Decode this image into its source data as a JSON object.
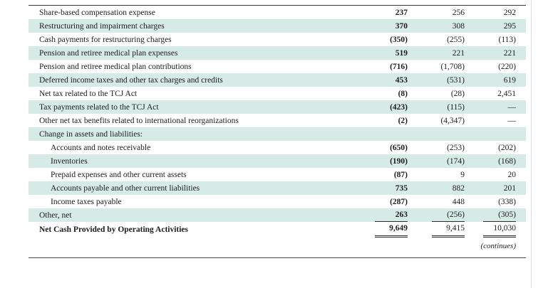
{
  "page": {
    "continues_note": "(continues)"
  },
  "colors": {
    "row_highlight": "#d7ebe6",
    "rule": "#3a3a3a"
  },
  "table": {
    "rows": [
      {
        "label": "Share-based compensation expense",
        "v1": "237",
        "v2": "256",
        "v3": "292"
      },
      {
        "label": "Restructuring and impairment charges",
        "v1": "370",
        "v2": "308",
        "v3": "295"
      },
      {
        "label": "Cash payments for restructuring charges",
        "v1": "(350)",
        "v2": "(255)",
        "v3": "(113)"
      },
      {
        "label": "Pension and retiree medical plan expenses",
        "v1": "519",
        "v2": "221",
        "v3": "221"
      },
      {
        "label": "Pension and retiree medical plan contributions",
        "v1": "(716)",
        "v2": "(1,708)",
        "v3": "(220)"
      },
      {
        "label": "Deferred income taxes and other tax charges and credits",
        "v1": "453",
        "v2": "(531)",
        "v3": "619"
      },
      {
        "label": "Net tax related to the TCJ Act",
        "v1": "(8)",
        "v2": "(28)",
        "v3": "2,451"
      },
      {
        "label": "Tax payments related to the TCJ Act",
        "v1": "(423)",
        "v2": "(115)",
        "v3": "—"
      },
      {
        "label": "Other net tax benefits related to international reorganizations",
        "v1": "(2)",
        "v2": "(4,347)",
        "v3": "—"
      },
      {
        "label": "Change in assets and liabilities:",
        "v1": "",
        "v2": "",
        "v3": ""
      },
      {
        "label": "Accounts and notes receivable",
        "v1": "(650)",
        "v2": "(253)",
        "v3": "(202)"
      },
      {
        "label": "Inventories",
        "v1": "(190)",
        "v2": "(174)",
        "v3": "(168)"
      },
      {
        "label": "Prepaid expenses and other current assets",
        "v1": "(87)",
        "v2": "9",
        "v3": "20"
      },
      {
        "label": "Accounts payable and other current liabilities",
        "v1": "735",
        "v2": "882",
        "v3": "201"
      },
      {
        "label": "Income taxes payable",
        "v1": "(287)",
        "v2": "448",
        "v3": "(338)"
      },
      {
        "label": "Other, net",
        "v1": "263",
        "v2": "(256)",
        "v3": "(305)"
      },
      {
        "label": "Net Cash Provided by Operating Activities",
        "v1": "9,649",
        "v2": "9,415",
        "v3": "10,030"
      }
    ]
  }
}
